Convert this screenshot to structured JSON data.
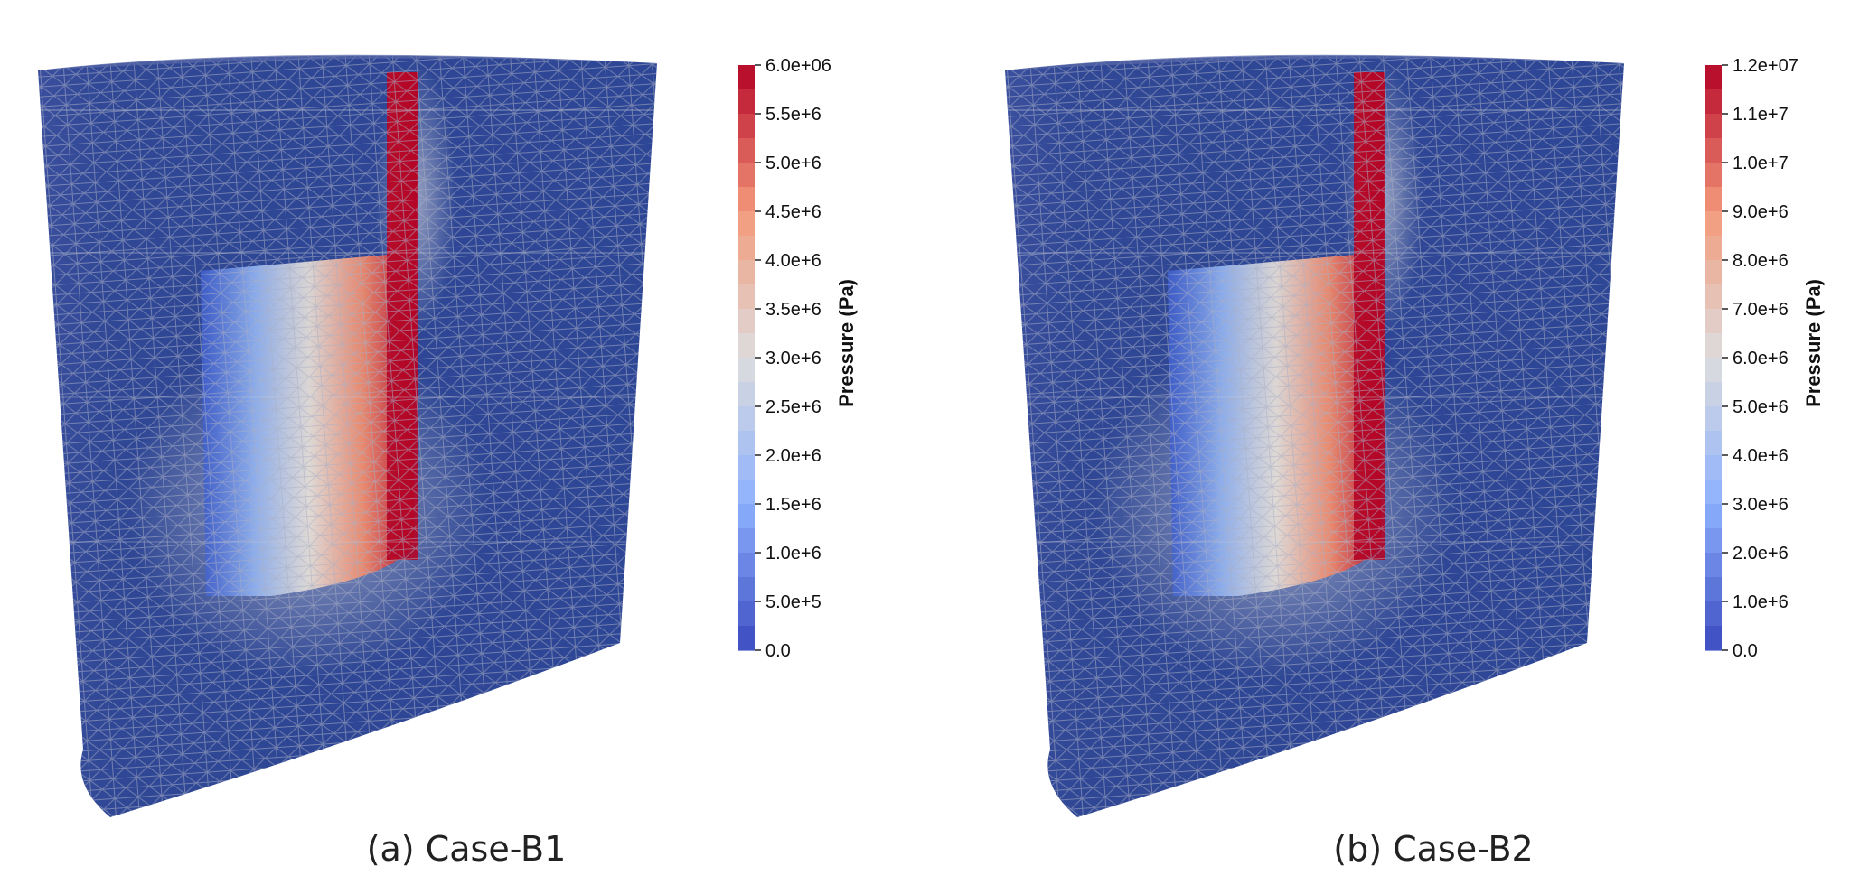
{
  "panels": [
    {
      "caption": "(a) Case-B1",
      "colorbar": {
        "title": "Pressure (Pa)",
        "min": 0,
        "max": 6000000,
        "ticks": [
          "6.0e+06",
          "5.5e+6",
          "5.0e+6",
          "4.5e+6",
          "4.0e+6",
          "3.5e+6",
          "3.0e+6",
          "2.5e+6",
          "2.0e+6",
          "1.5e+6",
          "1.0e+6",
          "5.0e+5",
          "0.0"
        ]
      }
    },
    {
      "caption": "(b) Case-B2",
      "colorbar": {
        "title": "Pressure (Pa)",
        "min": 0,
        "max": 12000000,
        "ticks": [
          "1.2e+07",
          "1.1e+7",
          "1.0e+7",
          "9.0e+6",
          "8.0e+6",
          "7.0e+6",
          "6.0e+6",
          "5.0e+6",
          "4.0e+6",
          "3.0e+6",
          "2.0e+6",
          "1.0e+6",
          "0.0"
        ]
      }
    }
  ],
  "colors": {
    "background_field": "#2f4a9c",
    "low": "#3b4cc0",
    "mid": "#dddddd",
    "high": "#b40426",
    "mesh": "#9fa6bc"
  }
}
